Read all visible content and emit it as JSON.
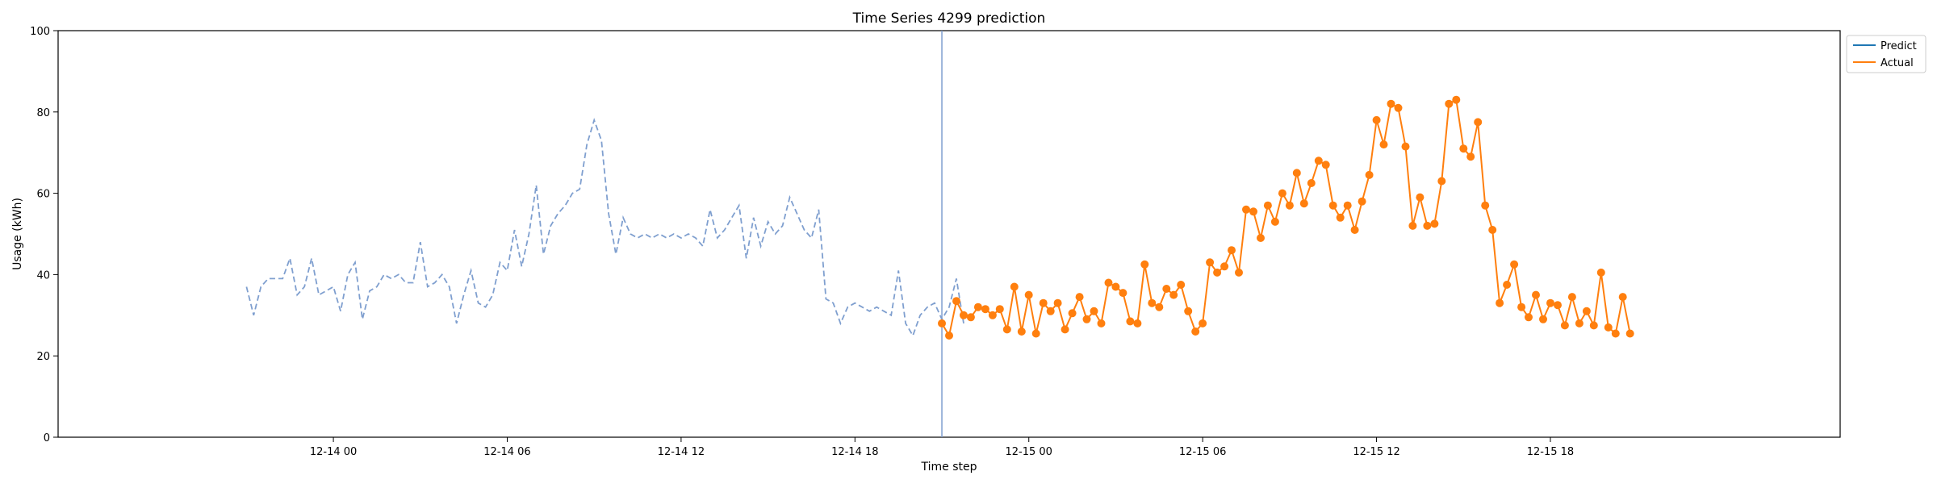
{
  "chart_data": {
    "type": "line",
    "title": "Time Series 4299 prediction",
    "xlabel": "Time step",
    "ylabel": "Usage (kWh)",
    "ylim": [
      0,
      100
    ],
    "yticks": [
      0,
      20,
      40,
      60,
      80,
      100
    ],
    "x_start": "12-13 21:00",
    "x_step_minutes": 30,
    "xticks": [
      {
        "label": "12-14 00",
        "index": 6
      },
      {
        "label": "12-14 06",
        "index": 18
      },
      {
        "label": "12-14 12",
        "index": 30
      },
      {
        "label": "12-14 18",
        "index": 42
      },
      {
        "label": "12-15 00",
        "index": 54
      },
      {
        "label": "12-15 06",
        "index": 66
      },
      {
        "label": "12-15 12",
        "index": 78
      },
      {
        "label": "12-15 18",
        "index": 90
      }
    ],
    "split_index": 48,
    "history": [
      37,
      30,
      37,
      39,
      39,
      39,
      44,
      35,
      37,
      44,
      35,
      36,
      37,
      31,
      40,
      43,
      29,
      36,
      37,
      40,
      39,
      40,
      38,
      38,
      48,
      37,
      38,
      40,
      37,
      28,
      35,
      41,
      33,
      32,
      35,
      43,
      41,
      51,
      42,
      50,
      62,
      45,
      52,
      55,
      57,
      60,
      61,
      72,
      78,
      73,
      55,
      45,
      54,
      50,
      49,
      50,
      49,
      50,
      49,
      50,
      49,
      50,
      49,
      47,
      56,
      49,
      51,
      54,
      57,
      44,
      54,
      47,
      53,
      50,
      52,
      59,
      55,
      51,
      49,
      56,
      34,
      33,
      28,
      32,
      33,
      32,
      31,
      32,
      31,
      30,
      41,
      28,
      25,
      30,
      32,
      33,
      29,
      32,
      39,
      28
    ],
    "series": [
      {
        "name": "Predict",
        "color": "#1f77b4",
        "values": []
      },
      {
        "name": "Actual",
        "color": "#ff7f0e",
        "values": [
          28,
          25,
          33.5,
          30,
          29.5,
          32,
          31.5,
          30,
          31.5,
          26.5,
          37,
          26,
          35,
          25.5,
          33,
          31,
          33,
          26.5,
          30.5,
          34.5,
          29,
          31,
          28,
          38,
          37,
          35.5,
          28.5,
          28,
          42.5,
          33,
          32,
          36.5,
          35,
          37.5,
          31,
          26,
          28,
          43,
          40.5,
          42,
          46,
          40.5,
          56,
          55.5,
          49,
          57,
          53,
          60,
          57,
          65,
          57.5,
          62.5,
          68,
          67,
          57,
          54,
          57,
          51,
          58,
          64.5,
          78,
          72,
          82,
          81,
          71.5,
          52,
          59,
          52,
          52.5,
          63,
          82,
          83,
          71,
          69,
          77.5,
          57,
          51,
          33,
          37.5,
          42.5,
          32,
          29.5,
          35,
          29,
          33,
          32.5,
          27.5,
          34.5,
          28,
          31,
          27.5,
          40.5,
          27,
          25.5,
          34.5,
          25.5
        ]
      }
    ],
    "legend_position": "upper-right-outside",
    "grid": false,
    "history_color": "#7f9fcf",
    "split_line_color": "#7f9fcf"
  }
}
